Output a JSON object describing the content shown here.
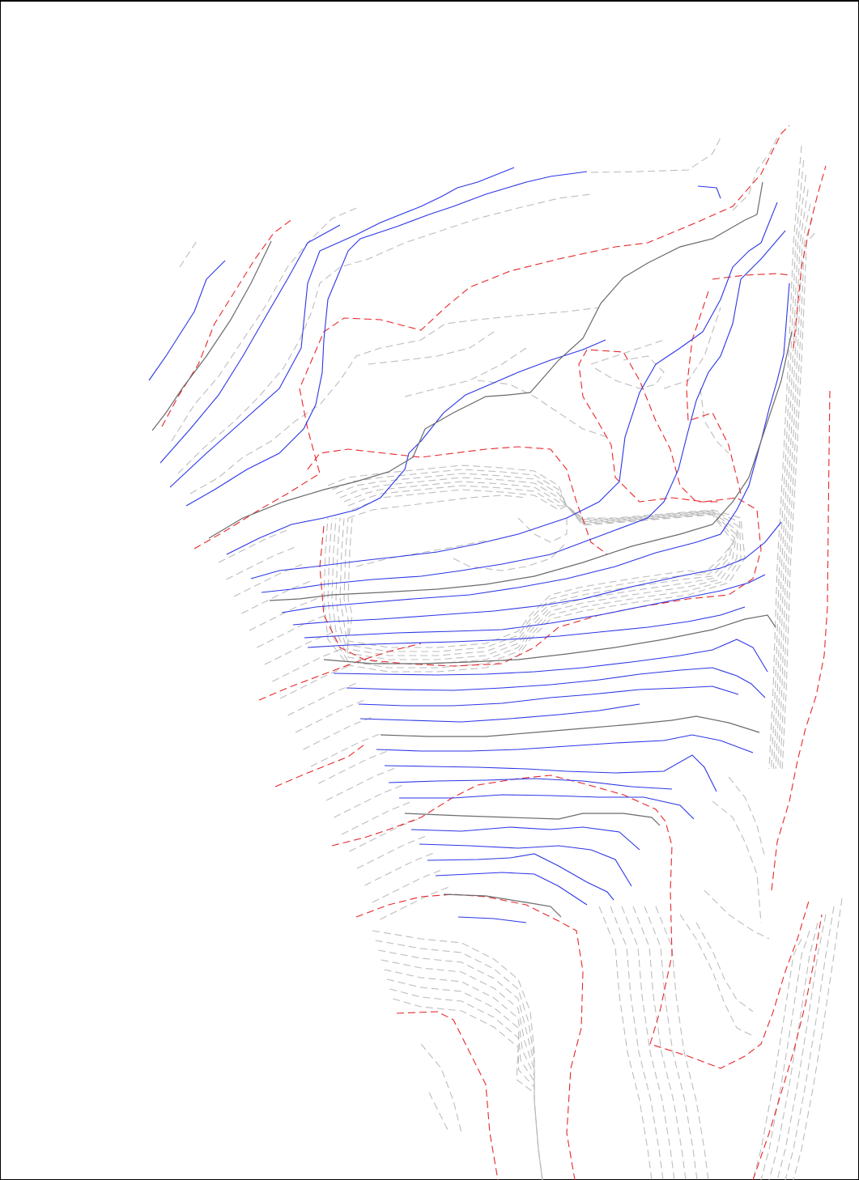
{
  "drawing": {
    "type": "contour-plan",
    "colors": {
      "existing_minor": "#bdbdbd",
      "existing_major": "#e8262a",
      "proposed_minor": "#2b36e6",
      "proposed_major": "#6b6b6b",
      "background": "#ffffff",
      "border": "#000000"
    },
    "layers": [
      "existing-minor-contours",
      "existing-index-contours",
      "proposed-contours",
      "proposed-index-contours"
    ]
  }
}
